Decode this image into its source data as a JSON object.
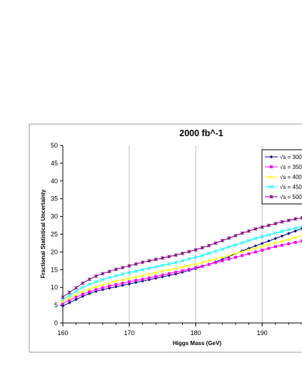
{
  "chart_data": {
    "type": "line",
    "title": "2000  fb^-1",
    "xlabel": "Higgs Mass (GeV)",
    "ylabel": "Fractional Statistical Uncertainty",
    "xlim": [
      160,
      196
    ],
    "ylim": [
      0,
      50
    ],
    "x_ticks": [
      "160",
      "170",
      "180",
      "190"
    ],
    "y_ticks": [
      "0",
      "5",
      "10",
      "15",
      "20",
      "25",
      "30",
      "35",
      "40",
      "45",
      "50"
    ],
    "grid": "vertical",
    "legend_position": "top-right",
    "x": [
      160,
      161,
      162,
      163,
      164,
      165,
      166,
      167,
      168,
      169,
      170,
      171,
      172,
      173,
      174,
      175,
      176,
      177,
      178,
      179,
      180,
      181,
      182,
      183,
      184,
      185,
      186,
      187,
      188,
      189,
      190,
      191,
      192,
      193,
      194,
      195,
      196
    ],
    "series": [
      {
        "name": "√s  =  300",
        "color": "#000080",
        "marker": "diamond",
        "values": [
          4.8,
          5.7,
          6.6,
          7.5,
          8.3,
          8.9,
          9.4,
          9.8,
          10.2,
          10.6,
          11.0,
          11.4,
          11.8,
          12.2,
          12.6,
          13.0,
          13.4,
          13.8,
          14.3,
          14.8,
          15.3,
          15.9,
          16.5,
          17.2,
          17.9,
          18.7,
          19.5,
          20.3,
          21.0,
          21.7,
          22.4,
          23.1,
          23.8,
          24.5,
          25.2,
          25.9,
          26.6
        ]
      },
      {
        "name": "√s  =  350",
        "color": "#ff00ff",
        "marker": "square",
        "values": [
          5.5,
          6.4,
          7.3,
          8.1,
          8.8,
          9.4,
          9.9,
          10.4,
          10.8,
          11.2,
          11.6,
          12.0,
          12.3,
          12.7,
          13.1,
          13.5,
          13.9,
          14.3,
          14.7,
          15.1,
          15.6,
          16.0,
          16.5,
          17.0,
          17.5,
          18.0,
          18.5,
          19.0,
          19.5,
          20.0,
          20.5,
          21.0,
          21.5,
          21.9,
          22.3,
          22.7,
          23.1
        ]
      },
      {
        "name": "√s  =  400",
        "color": "#ffff00",
        "marker": "triangle",
        "values": [
          6.1,
          7.0,
          8.0,
          8.9,
          9.6,
          10.2,
          10.8,
          11.3,
          11.8,
          12.2,
          12.6,
          13.0,
          13.4,
          13.8,
          14.2,
          14.6,
          15.0,
          15.4,
          15.8,
          16.2,
          16.6,
          17.1,
          17.6,
          18.1,
          18.6,
          19.1,
          19.6,
          20.1,
          20.6,
          21.1,
          21.6,
          22.1,
          22.6,
          23.1,
          23.6,
          24.1,
          24.6
        ]
      },
      {
        "name": "√s  =  450",
        "color": "#00ffff",
        "marker": "x",
        "values": [
          6.7,
          7.8,
          8.9,
          10.0,
          10.9,
          11.6,
          12.2,
          12.8,
          13.3,
          13.8,
          14.2,
          14.6,
          15.0,
          15.4,
          15.8,
          16.2,
          16.6,
          17.0,
          17.5,
          18.0,
          18.5,
          19.0,
          19.6,
          20.2,
          20.8,
          21.4,
          22.0,
          22.6,
          23.2,
          23.8,
          24.3,
          24.8,
          25.3,
          25.8,
          26.3,
          26.7,
          27.1
        ]
      },
      {
        "name": "√s  =  500",
        "color": "#800080",
        "marker": "star",
        "values": [
          7.3,
          8.6,
          9.9,
          11.2,
          12.3,
          13.2,
          13.9,
          14.5,
          15.1,
          15.6,
          16.1,
          16.6,
          17.1,
          17.5,
          17.9,
          18.3,
          18.7,
          19.1,
          19.6,
          20.1,
          20.6,
          21.2,
          21.8,
          22.5,
          23.2,
          23.9,
          24.6,
          25.3,
          25.9,
          26.5,
          27.0,
          27.5,
          28.0,
          28.5,
          28.9,
          29.3,
          29.6
        ]
      }
    ]
  }
}
